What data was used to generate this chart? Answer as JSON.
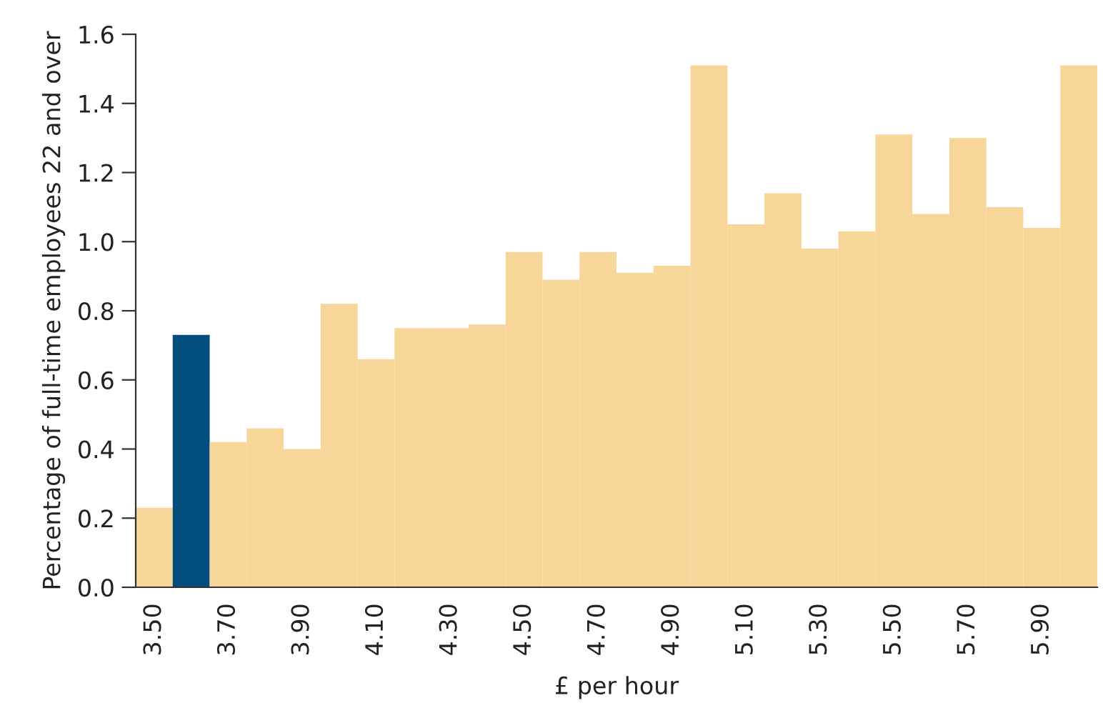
{
  "chart_data": {
    "type": "bar",
    "xlabel": "£ per hour",
    "ylabel": "Percentage of full-time employees 22 and over",
    "categories": [
      "3.50",
      null,
      "3.70",
      null,
      "3.90",
      null,
      "4.10",
      null,
      "4.30",
      null,
      "4.50",
      null,
      "4.70",
      null,
      "4.90",
      null,
      "5.10",
      null,
      "5.30",
      null,
      "5.50",
      null,
      "5.70",
      null,
      "5.90",
      null
    ],
    "values": [
      0.23,
      0.73,
      0.42,
      0.46,
      0.4,
      0.82,
      0.66,
      0.75,
      0.75,
      0.76,
      0.97,
      0.89,
      0.97,
      0.91,
      0.93,
      1.51,
      1.05,
      1.14,
      0.98,
      1.03,
      1.31,
      1.08,
      1.3,
      1.1,
      1.04,
      1.51
    ],
    "colors": [
      "#f8d598",
      "#024d7c",
      "#f8d598",
      "#f8d598",
      "#f8d598",
      "#f8d598",
      "#f8d598",
      "#f8d598",
      "#f8d598",
      "#f8d598",
      "#f8d598",
      "#f8d598",
      "#f8d598",
      "#f8d598",
      "#f8d598",
      "#f8d598",
      "#f8d598",
      "#f8d598",
      "#f8d598",
      "#f8d598",
      "#f8d598",
      "#f8d598",
      "#f8d598",
      "#f8d598",
      "#f8d598",
      "#f8d598"
    ],
    "ylim": [
      0,
      1.6
    ],
    "yticks": [
      {
        "value": 0,
        "label": "0.0"
      },
      {
        "value": 0.2,
        "label": "0.2"
      },
      {
        "value": 0.4,
        "label": "0.4"
      },
      {
        "value": 0.6,
        "label": "0.6"
      },
      {
        "value": 0.8,
        "label": "0.8"
      },
      {
        "value": 1.0,
        "label": "1.0"
      },
      {
        "value": 1.2,
        "label": "1.2"
      },
      {
        "value": 1.4,
        "label": "1.4"
      },
      {
        "value": 1.6,
        "label": "1.6"
      }
    ],
    "grid": false
  }
}
